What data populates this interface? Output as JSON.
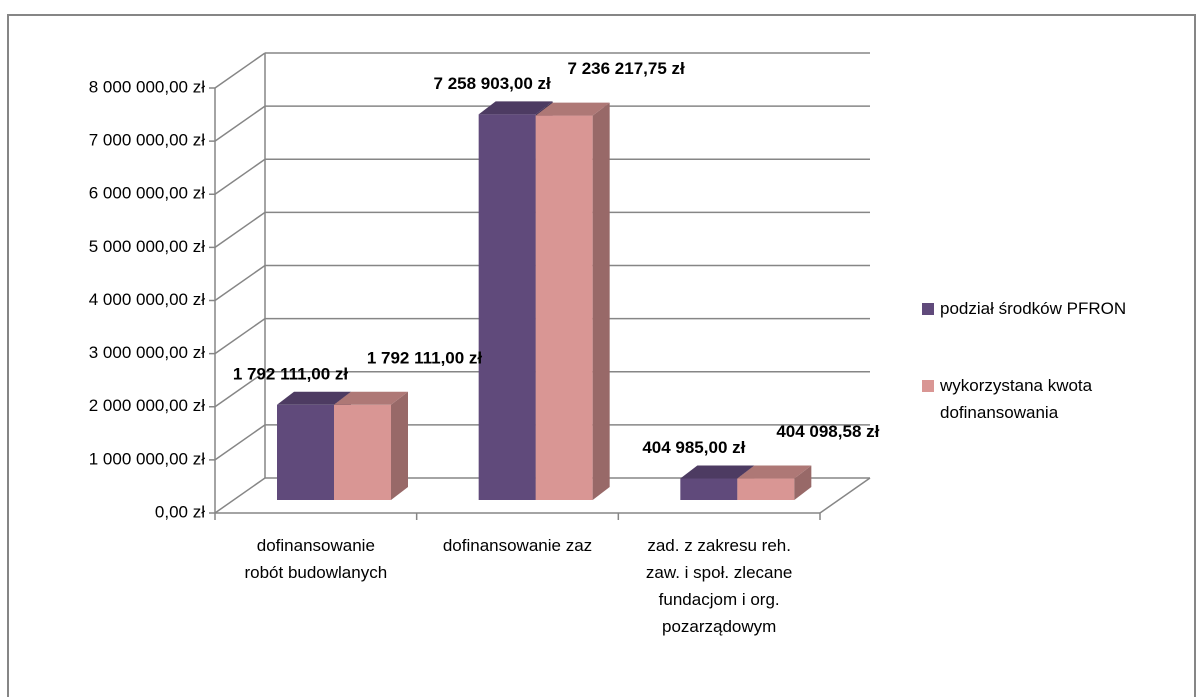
{
  "chart_data": {
    "type": "bar3d",
    "categories": [
      "dofinansowanie robót budowlanych",
      "dofinansowanie zaz",
      "zad. z zakresu reh. zaw. i społ. zlecane fundacjom i org. pozarządowym"
    ],
    "series": [
      {
        "name": "podział środków PFRON",
        "color": "#604a7b",
        "values": [
          1792111,
          7258903,
          404985
        ],
        "value_labels": [
          "1 792 111,00 zł",
          "7 258 903,00 zł",
          "404 985,00 zł"
        ]
      },
      {
        "name": "wykorzystana kwota dofinansowania",
        "color": "#d99694",
        "values": [
          1792111,
          7236217.75,
          404098.58
        ],
        "value_labels": [
          "1 792 111,00 zł",
          "7 236 217,75 zł",
          "404 098,58 zł"
        ]
      }
    ],
    "ylim": [
      0,
      8000000
    ],
    "yticks": [
      {
        "value": 0,
        "label": "0,00 zł"
      },
      {
        "value": 1000000,
        "label": "1 000 000,00 zł"
      },
      {
        "value": 2000000,
        "label": "2 000 000,00 zł"
      },
      {
        "value": 3000000,
        "label": "3 000 000,00 zł"
      },
      {
        "value": 4000000,
        "label": "4 000 000,00 zł"
      },
      {
        "value": 5000000,
        "label": "5 000 000,00 zł"
      },
      {
        "value": 6000000,
        "label": "6 000 000,00 zł"
      },
      {
        "value": 7000000,
        "label": "7 000 000,00 zł"
      },
      {
        "value": 8000000,
        "label": "8 000 000,00 zł"
      }
    ],
    "grid": true,
    "legend": "right"
  }
}
